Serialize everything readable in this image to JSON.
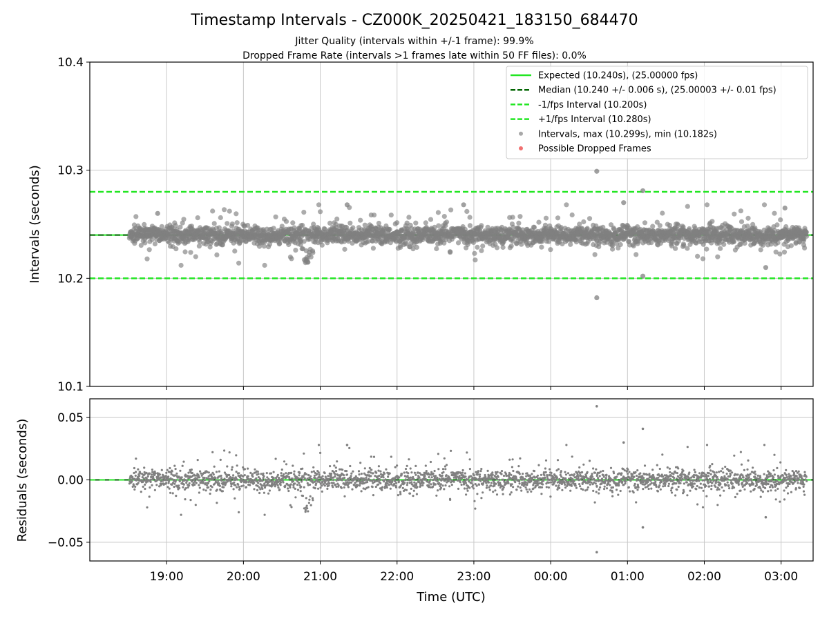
{
  "figure": {
    "title": "Timestamp Intervals - CZ000K_20250421_183150_684470",
    "subtitle_1": "Jitter Quality (intervals within +/-1 frame): 99.9%",
    "subtitle_2": "Dropped Frame Rate (intervals >1 frames late within 50 FF files): 0.0%"
  },
  "colors": {
    "expected": "#22e622",
    "median": "#006400",
    "fps_bounds": "#22e622",
    "intervals": "#808080",
    "dropped": "#f06060",
    "grid": "#c8c8c8"
  },
  "chart_data": [
    {
      "type": "scatter",
      "name": "intervals-panel",
      "ylabel": "Intervals (seconds)",
      "ylim": [
        10.1,
        10.4
      ],
      "yticks": [
        10.1,
        10.2,
        10.3,
        10.4
      ],
      "ytick_labels": [
        "10.1",
        "10.2",
        "10.3",
        "10.4"
      ],
      "grid": true,
      "legend_placement": "upper right",
      "expected": 10.24,
      "median": 10.24,
      "minus_1fps": 10.2,
      "plus_1fps": 10.28,
      "legend": [
        {
          "label": "Expected (10.240s), (25.00000 fps)",
          "kind": "solid",
          "color": "#22e622"
        },
        {
          "label": "Median (10.240 +/- 0.006 s), (25.00003 +/- 0.01 fps)",
          "kind": "dashed",
          "color": "#006400"
        },
        {
          "label": "-1/fps Interval (10.200s)",
          "kind": "dashed",
          "color": "#22e622"
        },
        {
          "label": "+1/fps Interval (10.280s)",
          "kind": "dashed",
          "color": "#22e622"
        },
        {
          "label": "Intervals, max (10.299s), min (10.182s)",
          "kind": "dot",
          "color": "#a0a0a0"
        },
        {
          "label": "Possible Dropped Frames",
          "kind": "dot",
          "color": "#f06060"
        }
      ],
      "stats": {
        "max": 10.299,
        "min": 10.182,
        "std": 0.006,
        "first_time": "18:31",
        "last_time": "03:20"
      },
      "outliers": [
        {
          "t": "00:36",
          "v": 10.299
        },
        {
          "t": "00:36",
          "v": 10.182
        },
        {
          "t": "01:12",
          "v": 10.281
        },
        {
          "t": "01:12",
          "v": 10.202
        },
        {
          "t": "00:57",
          "v": 10.27
        },
        {
          "t": "18:53",
          "v": 10.26
        },
        {
          "t": "20:50",
          "v": 10.215
        },
        {
          "t": "21:21",
          "v": 10.268
        },
        {
          "t": "22:52",
          "v": 10.268
        },
        {
          "t": "02:48",
          "v": 10.21
        },
        {
          "t": "03:03",
          "v": 10.265
        }
      ],
      "dropped_frames": []
    },
    {
      "type": "scatter",
      "name": "residuals-panel",
      "ylabel": "Residuals (seconds)",
      "xlabel": "Time (UTC)",
      "ylim": [
        -0.065,
        0.065
      ],
      "yticks": [
        -0.05,
        0.0,
        0.05
      ],
      "ytick_labels": [
        "−0.05",
        "0.00",
        "0.05"
      ],
      "grid": true,
      "zero_line": 0.0,
      "outliers": [
        {
          "t": "00:36",
          "v": 0.059
        },
        {
          "t": "00:36",
          "v": -0.058
        },
        {
          "t": "01:12",
          "v": 0.041
        },
        {
          "t": "01:12",
          "v": -0.038
        },
        {
          "t": "00:57",
          "v": 0.03
        },
        {
          "t": "21:21",
          "v": 0.028
        },
        {
          "t": "02:48",
          "v": -0.03
        }
      ]
    }
  ],
  "x_axis": {
    "range": [
      "18:00",
      "03:25"
    ],
    "ticks": [
      "19:00",
      "20:00",
      "21:00",
      "22:00",
      "23:00",
      "00:00",
      "01:00",
      "02:00",
      "03:00"
    ]
  }
}
